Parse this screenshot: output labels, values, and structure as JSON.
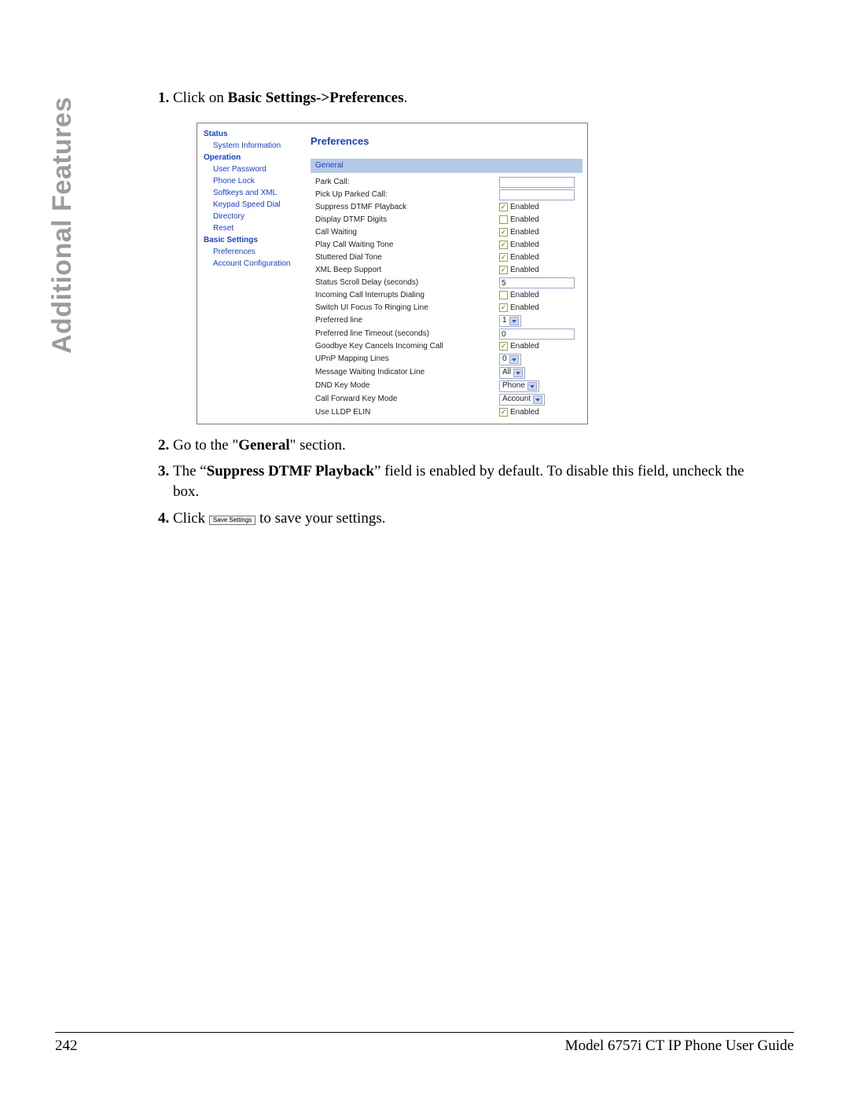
{
  "side_label": "Additional Features",
  "steps": {
    "s1_prefix": "Click on ",
    "s1_bold": "Basic Settings->Preferences",
    "s1_suffix": ".",
    "s2_prefix": "Go to the \"",
    "s2_bold": "General",
    "s2_suffix": "\" section.",
    "s3_prefix": "The “",
    "s3_bold": "Suppress DTMF Playback",
    "s3_suffix": "” field is enabled by default. To disable this field, uncheck the box.",
    "s4_prefix": "Click ",
    "s4_btn": "Save Settings",
    "s4_suffix": " to save your settings."
  },
  "nav": {
    "status": "Status",
    "sysinfo": "System Information",
    "operation": "Operation",
    "user_pw": "User Password",
    "phone_lock": "Phone Lock",
    "softkeys": "Softkeys and XML",
    "keypad": "Keypad Speed Dial",
    "directory": "Directory",
    "reset": "Reset",
    "basic": "Basic Settings",
    "prefs": "Preferences",
    "acct": "Account Configuration"
  },
  "panel": {
    "title": "Preferences",
    "general": "General",
    "enabled": "Enabled",
    "rows": {
      "park_call": "Park Call:",
      "pickup": "Pick Up Parked Call:",
      "suppress": "Suppress DTMF Playback",
      "display_dtmf": "Display DTMF Digits",
      "call_waiting": "Call Waiting",
      "play_cw": "Play Call Waiting Tone",
      "stuttered": "Stuttered Dial Tone",
      "xml_beep": "XML Beep Support",
      "scroll_delay": "Status Scroll Delay (seconds)",
      "incoming_interrupt": "Incoming Call Interrupts Dialing",
      "switch_focus": "Switch UI Focus To Ringing Line",
      "pref_line": "Preferred line",
      "pref_timeout": "Preferred line Timeout (seconds)",
      "goodbye": "Goodbye Key Cancels Incoming Call",
      "upnp": "UPnP Mapping Lines",
      "mwi": "Message Waiting Indicator Line",
      "dnd": "DND Key Mode",
      "cfwd": "Call Forward Key Mode",
      "lldp": "Use LLDP ELIN"
    },
    "values": {
      "scroll_delay": "5",
      "pref_line": "1",
      "pref_timeout": "0",
      "upnp": "0",
      "mwi": "All",
      "dnd": "Phone",
      "cfwd": "Account"
    }
  },
  "footer": {
    "page": "242",
    "title": "Model 6757i CT IP Phone User Guide"
  }
}
